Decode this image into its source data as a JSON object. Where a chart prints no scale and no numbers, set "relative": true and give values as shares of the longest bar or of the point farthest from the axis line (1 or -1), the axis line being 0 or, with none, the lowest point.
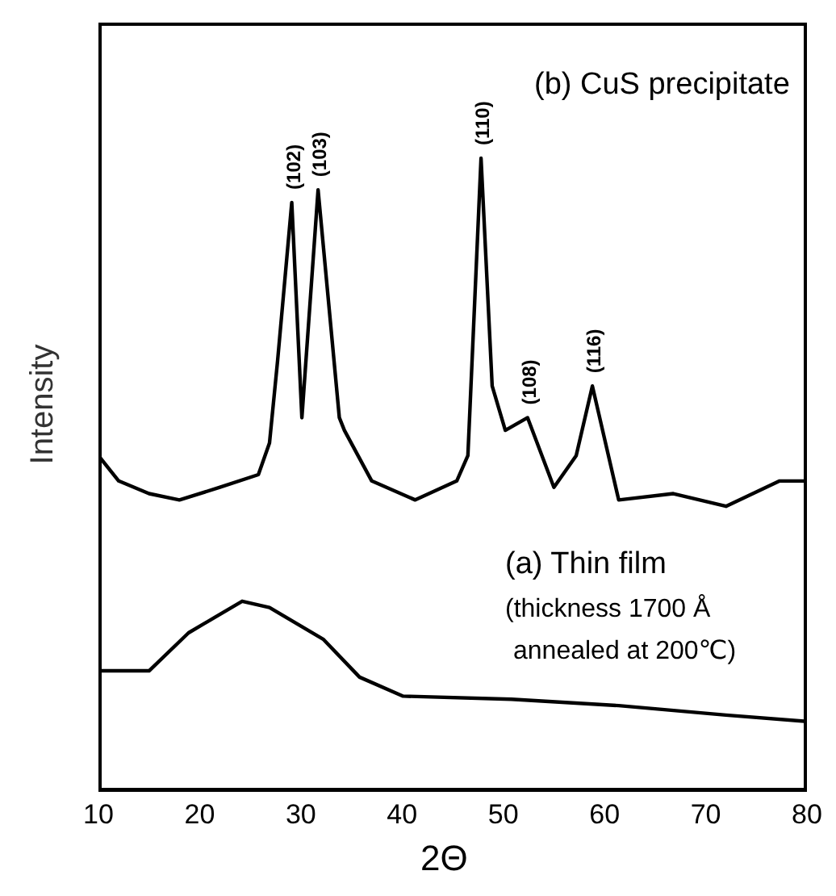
{
  "chart_data": {
    "type": "line",
    "relative": true,
    "xlabel": "2Θ",
    "ylabel": "Intensity",
    "xlim": [
      10,
      80
    ],
    "xticks": [
      10,
      20,
      30,
      40,
      50,
      60,
      70,
      80
    ],
    "marker": "none",
    "line_style": "solid",
    "series": [
      {
        "color": "#000000",
        "x": [
          10,
          12,
          15,
          18,
          22,
          25.8,
          26.9,
          27.7,
          29.1,
          30.1,
          31.7,
          33.8,
          34.3,
          37,
          41.3,
          45.4,
          46.5,
          47.8,
          48.9,
          50.2,
          52.4,
          55,
          57.2,
          58.8,
          61.4,
          66.8,
          72,
          77.3,
          80
        ],
        "values": [
          0.53,
          0.49,
          0.47,
          0.46,
          0.48,
          0.5,
          0.55,
          0.68,
          0.93,
          0.59,
          0.95,
          0.59,
          0.57,
          0.49,
          0.46,
          0.49,
          0.53,
          1,
          0.64,
          0.57,
          0.59,
          0.48,
          0.53,
          0.64,
          0.46,
          0.47,
          0.45,
          0.49,
          0.49
        ]
      },
      {
        "color": "#000000",
        "x": [
          10,
          15,
          18.9,
          24.2,
          26.9,
          32.2,
          35.8,
          40.1,
          50.8,
          61.4,
          72,
          80
        ],
        "values": [
          0.19,
          0.19,
          0.25,
          0.3,
          0.29,
          0.24,
          0.18,
          0.15,
          0.145,
          0.135,
          0.12,
          0.11
        ]
      }
    ],
    "annotations": [
      "(b) CuS precipitate",
      "(a) Thin film",
      "(thickness 1700 Å",
      "annealed at 200℃)",
      {
        "text": "(102)",
        "x": 29.1,
        "y": 0.93
      },
      {
        "text": "(103)",
        "x": 31.7,
        "y": 0.95
      },
      {
        "text": "(110)",
        "x": 47.8,
        "y": 1
      },
      {
        "text": "(108)",
        "x": 52.4,
        "y": 0.59
      },
      {
        "text": "(116)",
        "x": 58.8,
        "y": 0.64
      }
    ]
  }
}
